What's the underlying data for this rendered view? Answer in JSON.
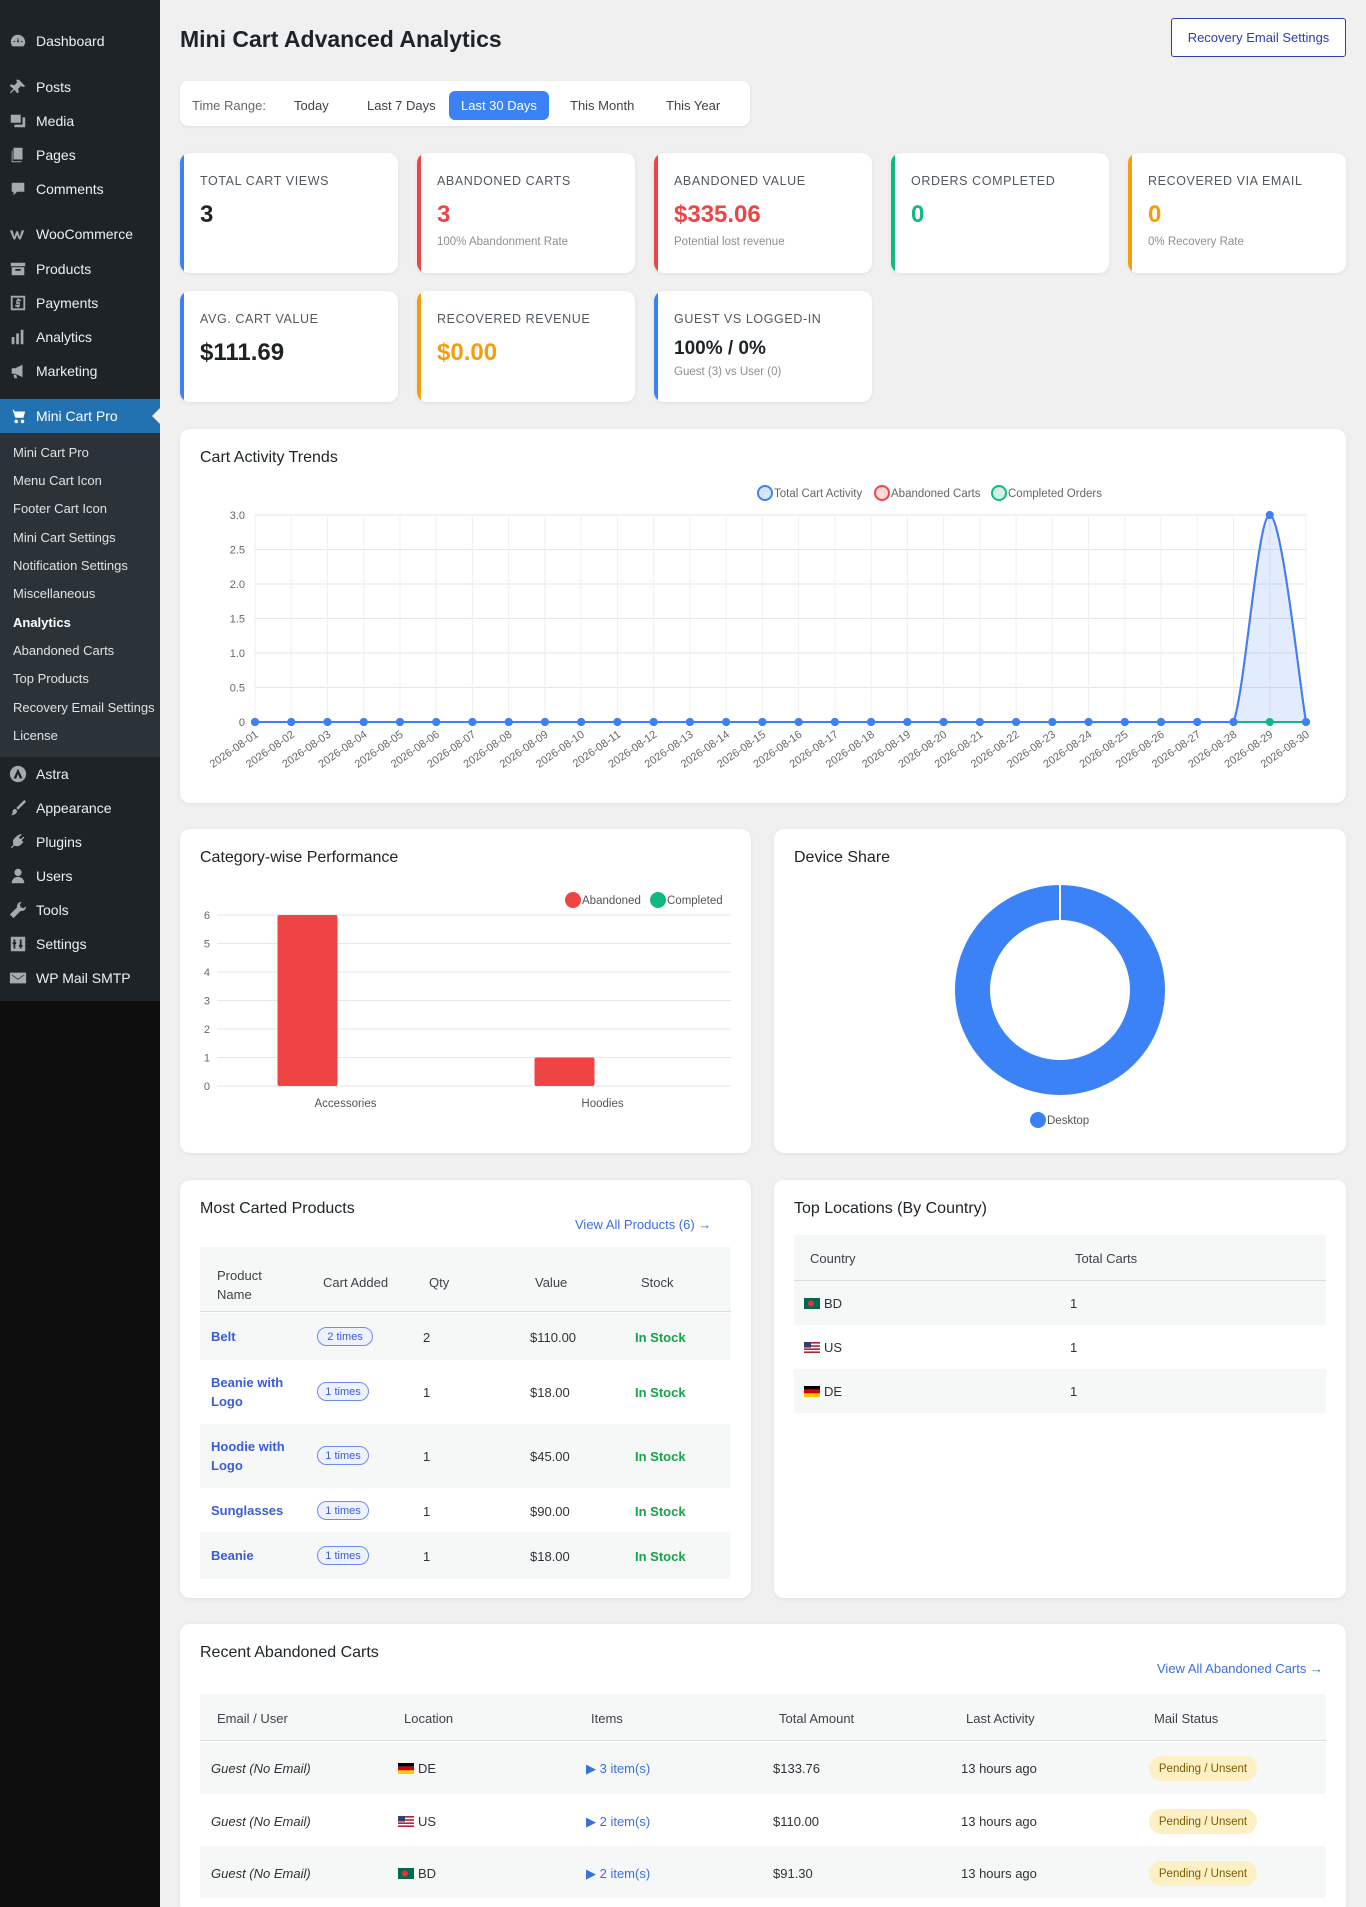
{
  "sidebar": {
    "items": [
      {
        "label": "Dashboard",
        "icon": "dashboard-icon"
      },
      {
        "label": "Posts",
        "icon": "pin-icon"
      },
      {
        "label": "Media",
        "icon": "media-icon"
      },
      {
        "label": "Pages",
        "icon": "pages-icon"
      },
      {
        "label": "Comments",
        "icon": "comment-icon"
      },
      {
        "label": "WooCommerce",
        "icon": "woo-icon"
      },
      {
        "label": "Products",
        "icon": "archive-icon"
      },
      {
        "label": "Payments",
        "icon": "dollar-icon"
      },
      {
        "label": "Analytics",
        "icon": "bar-chart-icon"
      },
      {
        "label": "Marketing",
        "icon": "megaphone-icon"
      },
      {
        "label": "Mini Cart Pro",
        "icon": "cart-icon"
      },
      {
        "label": "Astra",
        "icon": "astra-icon"
      },
      {
        "label": "Appearance",
        "icon": "brush-icon"
      },
      {
        "label": "Plugins",
        "icon": "plug-icon"
      },
      {
        "label": "Users",
        "icon": "user-icon"
      },
      {
        "label": "Tools",
        "icon": "wrench-icon"
      },
      {
        "label": "Settings",
        "icon": "sliders-icon"
      },
      {
        "label": "WP Mail SMTP",
        "icon": "mail-icon"
      }
    ],
    "submenu": [
      "Mini Cart Pro",
      "Menu Cart Icon",
      "Footer Cart Icon",
      "Mini Cart Settings",
      "Notification Settings",
      "Miscellaneous",
      "Analytics",
      "Abandoned Carts",
      "Top Products",
      "Recovery Email Settings",
      "License"
    ],
    "current_submenu": "Analytics"
  },
  "page": {
    "title": "Mini Cart Advanced Analytics",
    "recovery_button": "Recovery Email Settings"
  },
  "time_range": {
    "label": "Time Range:",
    "options": [
      "Today",
      "Last 7 Days",
      "Last 30 Days",
      "This Month",
      "This Year"
    ],
    "selected": "Last 30 Days"
  },
  "colors": {
    "blue": "#3b82f6",
    "red": "#ef4444",
    "green": "#10b981",
    "amber": "#f59e0b"
  },
  "stats": [
    {
      "label": "TOTAL CART VIEWS",
      "value": "3",
      "sub": "",
      "accent": "#3b82f6",
      "value_color": "#1d2327"
    },
    {
      "label": "ABANDONED CARTS",
      "value": "3",
      "sub": "100% Abandonment Rate",
      "accent": "#ef4444",
      "value_color": "#ef4444"
    },
    {
      "label": "ABANDONED VALUE",
      "value": "$335.06",
      "sub": "Potential lost revenue",
      "accent": "#ef4444",
      "value_color": "#ef4444"
    },
    {
      "label": "ORDERS COMPLETED",
      "value": "0",
      "sub": "",
      "accent": "#10b981",
      "value_color": "#10b981"
    },
    {
      "label": "RECOVERED VIA EMAIL",
      "value": "0",
      "sub": "0% Recovery Rate",
      "accent": "#f59e0b",
      "value_color": "#f59e0b"
    },
    {
      "label": "AVG. CART VALUE",
      "value": "$111.69",
      "sub": "",
      "accent": "#3b82f6",
      "value_color": "#1d2327"
    },
    {
      "label": "RECOVERED REVENUE",
      "value": "$0.00",
      "sub": "",
      "accent": "#f59e0b",
      "value_color": "#f59e0b"
    },
    {
      "label": "GUEST VS LOGGED-IN",
      "value": "100% / 0%",
      "sub": "Guest (3) vs User (0)",
      "accent": "#3b82f6",
      "value_color": "#1d2327"
    }
  ],
  "trends": {
    "title": "Cart Activity Trends"
  },
  "category": {
    "title": "Category-wise Performance"
  },
  "device": {
    "title": "Device Share"
  },
  "chart_data": [
    {
      "type": "line",
      "title": "Cart Activity Trends",
      "x": [
        "2026-08-01",
        "2026-08-02",
        "2026-08-03",
        "2026-08-04",
        "2026-08-05",
        "2026-08-06",
        "2026-08-07",
        "2026-08-08",
        "2026-08-09",
        "2026-08-10",
        "2026-08-11",
        "2026-08-12",
        "2026-08-13",
        "2026-08-14",
        "2026-08-15",
        "2026-08-16",
        "2026-08-17",
        "2026-08-18",
        "2026-08-19",
        "2026-08-20",
        "2026-08-21",
        "2026-08-22",
        "2026-08-23",
        "2026-08-24",
        "2026-08-25",
        "2026-08-26",
        "2026-08-27",
        "2026-08-28",
        "2026-08-29",
        "2026-08-30"
      ],
      "series": [
        {
          "name": "Total Cart Activity",
          "values": [
            0,
            0,
            0,
            0,
            0,
            0,
            0,
            0,
            0,
            0,
            0,
            0,
            0,
            0,
            0,
            0,
            0,
            0,
            0,
            0,
            0,
            0,
            0,
            0,
            0,
            0,
            0,
            0,
            3,
            0
          ],
          "color": "#3b82f6"
        },
        {
          "name": "Abandoned Carts",
          "values": [
            0,
            0,
            0,
            0,
            0,
            0,
            0,
            0,
            0,
            0,
            0,
            0,
            0,
            0,
            0,
            0,
            0,
            0,
            0,
            0,
            0,
            0,
            0,
            0,
            0,
            0,
            0,
            0,
            3,
            0
          ],
          "color": "#ef4444"
        },
        {
          "name": "Completed Orders",
          "values": [
            0,
            0,
            0,
            0,
            0,
            0,
            0,
            0,
            0,
            0,
            0,
            0,
            0,
            0,
            0,
            0,
            0,
            0,
            0,
            0,
            0,
            0,
            0,
            0,
            0,
            0,
            0,
            0,
            0,
            0
          ],
          "color": "#10b981"
        }
      ],
      "yticks": [
        "0",
        "0.5",
        "1.0",
        "1.5",
        "2.0",
        "2.5",
        "3.0"
      ],
      "ylim": [
        0,
        3
      ],
      "legend": "top",
      "grid": true
    },
    {
      "type": "bar",
      "title": "Category-wise Performance",
      "categories": [
        "Accessories",
        "Hoodies"
      ],
      "series": [
        {
          "name": "Abandoned",
          "values": [
            6,
            1
          ],
          "color": "#ef4444"
        },
        {
          "name": "Completed",
          "values": [
            0,
            0
          ],
          "color": "#10b981"
        }
      ],
      "yticks": [
        "0",
        "1",
        "2",
        "3",
        "4",
        "5",
        "6"
      ],
      "ylim": [
        0,
        6
      ],
      "legend": "top",
      "grid": true
    },
    {
      "type": "pie",
      "title": "Device Share",
      "categories": [
        "Desktop"
      ],
      "values": [
        100
      ],
      "colors": [
        "#3b82f6"
      ],
      "legend": "bottom"
    }
  ],
  "products": {
    "title": "Most Carted Products",
    "view_all": "View All Products (6) →",
    "headers": [
      "Product Name",
      "Cart Added",
      "Qty",
      "Value",
      "Stock"
    ],
    "rows": [
      {
        "name": "Belt",
        "added": "2 times",
        "qty": "2",
        "value": "$110.00",
        "stock": "In Stock"
      },
      {
        "name": "Beanie with Logo",
        "added": "1 times",
        "qty": "1",
        "value": "$18.00",
        "stock": "In Stock"
      },
      {
        "name": "Hoodie with Logo",
        "added": "1 times",
        "qty": "1",
        "value": "$45.00",
        "stock": "In Stock"
      },
      {
        "name": "Sunglasses",
        "added": "1 times",
        "qty": "1",
        "value": "$90.00",
        "stock": "In Stock"
      },
      {
        "name": "Beanie",
        "added": "1 times",
        "qty": "1",
        "value": "$18.00",
        "stock": "In Stock"
      }
    ]
  },
  "locations": {
    "title": "Top Locations (By Country)",
    "headers": [
      "Country",
      "Total Carts"
    ],
    "rows": [
      {
        "country": "BD",
        "carts": "1"
      },
      {
        "country": "US",
        "carts": "1"
      },
      {
        "country": "DE",
        "carts": "1"
      }
    ]
  },
  "abandoned": {
    "title": "Recent Abandoned Carts",
    "view_all": "View All Abandoned Carts →",
    "headers": [
      "Email / User",
      "Location",
      "Items",
      "Total Amount",
      "Last Activity",
      "Mail Status"
    ],
    "rows": [
      {
        "user": "Guest (No Email)",
        "location": "DE",
        "items": "▶ 3 item(s)",
        "total": "$133.76",
        "activity": "13 hours ago",
        "status": "Pending / Unsent"
      },
      {
        "user": "Guest (No Email)",
        "location": "US",
        "items": "▶ 2 item(s)",
        "total": "$110.00",
        "activity": "13 hours ago",
        "status": "Pending / Unsent"
      },
      {
        "user": "Guest (No Email)",
        "location": "BD",
        "items": "▶ 2 item(s)",
        "total": "$91.30",
        "activity": "13 hours ago",
        "status": "Pending / Unsent"
      }
    ]
  }
}
